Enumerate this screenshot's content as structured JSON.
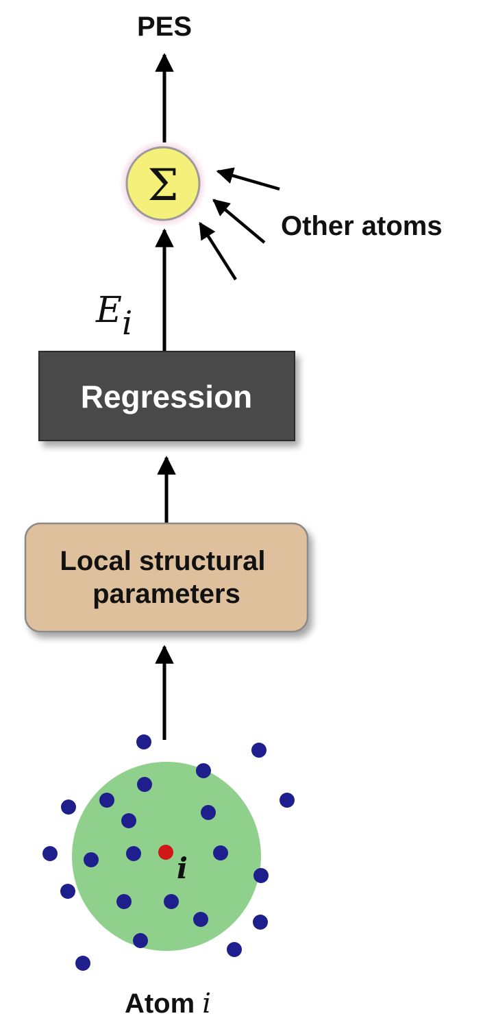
{
  "top_label": "PES",
  "sum_symbol": "Σ",
  "other_atoms_label": "Other atoms",
  "energy_label": {
    "main": "E",
    "sub": "i"
  },
  "regression_label": "Regression",
  "local_params_label": {
    "line1": "Local structural",
    "line2": "parameters"
  },
  "atom_center_label": "i",
  "atom_caption": {
    "text": "Atom ",
    "var": "i"
  },
  "colors": {
    "arrow": "#000000",
    "sum_fill": "#f4f07a",
    "sum_glow": "#e8a0c0",
    "regression_fill": "#4a4a4a",
    "regression_text": "#ffffff",
    "params_fill": "#dfc09c",
    "params_border": "#8a8a8a",
    "sphere_fill": "#8ed08c",
    "neighbor_atom": "#1e1e8c",
    "center_atom": "#d01818"
  }
}
